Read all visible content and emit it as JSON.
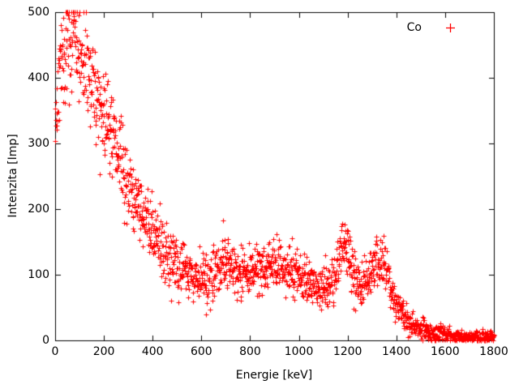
{
  "chart_data": {
    "type": "scatter",
    "title": "",
    "xlabel": "Energie [keV]",
    "ylabel": "Intenzita [Imp]",
    "xlim": [
      0,
      1800
    ],
    "ylim": [
      0,
      500
    ],
    "xticks": [
      0,
      200,
      400,
      600,
      800,
      1000,
      1200,
      1400,
      1600,
      1800
    ],
    "yticks": [
      0,
      100,
      200,
      300,
      400,
      500
    ],
    "grid": false,
    "legend_position": "top-right-inside",
    "background_color": "#ffffff",
    "border_color": "#000000",
    "legend": [
      {
        "label": "Co",
        "marker": "plus",
        "color": "#ff0000"
      }
    ],
    "series": [
      {
        "name": "Co",
        "marker": "plus",
        "marker_size": 7,
        "color": "#ff0000",
        "x_step_kev": 1,
        "noise_model": "poisson-like",
        "noise_scale": 1.9,
        "seed": 42,
        "envelope": [
          [
            0,
            320
          ],
          [
            8,
            380
          ],
          [
            20,
            420
          ],
          [
            40,
            445
          ],
          [
            60,
            460
          ],
          [
            80,
            455
          ],
          [
            100,
            440
          ],
          [
            120,
            420
          ],
          [
            140,
            400
          ],
          [
            160,
            378
          ],
          [
            180,
            358
          ],
          [
            210,
            332
          ],
          [
            240,
            303
          ],
          [
            270,
            268
          ],
          [
            300,
            240
          ],
          [
            330,
            216
          ],
          [
            360,
            194
          ],
          [
            400,
            166
          ],
          [
            440,
            141
          ],
          [
            480,
            123
          ],
          [
            520,
            109
          ],
          [
            560,
            100
          ],
          [
            600,
            95
          ],
          [
            640,
            99
          ],
          [
            670,
            108
          ],
          [
            700,
            116
          ],
          [
            730,
            108
          ],
          [
            760,
            104
          ],
          [
            800,
            105
          ],
          [
            840,
            110
          ],
          [
            880,
            112
          ],
          [
            920,
            112
          ],
          [
            950,
            114
          ],
          [
            980,
            104
          ],
          [
            1020,
            92
          ],
          [
            1060,
            83
          ],
          [
            1100,
            78
          ],
          [
            1130,
            86
          ],
          [
            1155,
            110
          ],
          [
            1173,
            148
          ],
          [
            1190,
            135
          ],
          [
            1210,
            112
          ],
          [
            1235,
            92
          ],
          [
            1260,
            81
          ],
          [
            1285,
            95
          ],
          [
            1310,
            115
          ],
          [
            1332,
            127
          ],
          [
            1350,
            110
          ],
          [
            1375,
            82
          ],
          [
            1400,
            58
          ],
          [
            1425,
            42
          ],
          [
            1450,
            29
          ],
          [
            1480,
            21
          ],
          [
            1510,
            16
          ],
          [
            1550,
            12
          ],
          [
            1600,
            9
          ],
          [
            1650,
            7
          ],
          [
            1700,
            6
          ],
          [
            1750,
            6
          ],
          [
            1800,
            6
          ]
        ],
        "outliers": [
          [
            688,
            183
          ],
          [
            620,
            40
          ]
        ],
        "photopeaks_kev": [
          1173,
          1332
        ]
      }
    ]
  }
}
